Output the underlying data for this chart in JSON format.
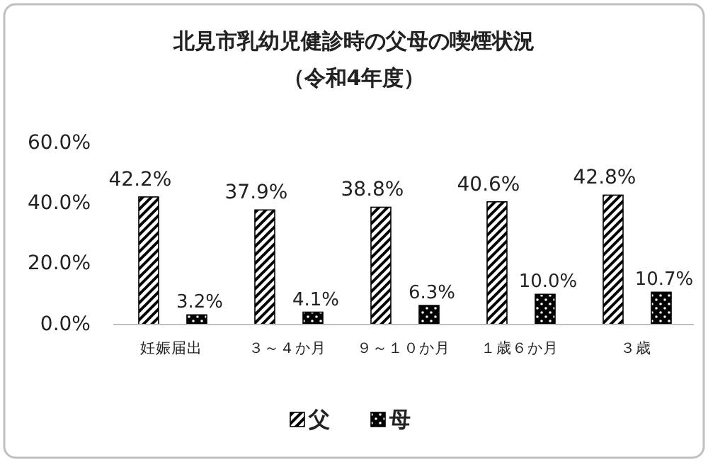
{
  "chart_data": {
    "type": "bar",
    "title": "北見市乳幼児健診時の父母の喫煙状況",
    "subtitle": "（令和4年度）",
    "categories": [
      "妊娠届出",
      "３～４か月",
      "９～１０か月",
      "１歳６か月",
      "３歳"
    ],
    "series": [
      {
        "name": "父",
        "color": "#000000",
        "values": [
          42.2,
          37.9,
          38.8,
          40.6,
          42.8
        ],
        "value_labels": [
          "42.2%",
          "37.9%",
          "38.8%",
          "40.6%",
          "42.8%"
        ]
      },
      {
        "name": "母",
        "color": "#000000",
        "values": [
          3.2,
          4.1,
          6.3,
          10.0,
          10.7
        ],
        "value_labels": [
          "3.2%",
          "4.1%",
          "6.3%",
          "10.0%",
          "10.7%"
        ]
      }
    ],
    "ylim": [
      0,
      60
    ],
    "yticks": [
      {
        "value": 0,
        "label": "0.0%"
      },
      {
        "value": 20,
        "label": "20.0%"
      },
      {
        "value": 40,
        "label": "40.0%"
      },
      {
        "value": 60,
        "label": "60.0%"
      }
    ],
    "grid": false,
    "legend": "bottom"
  }
}
